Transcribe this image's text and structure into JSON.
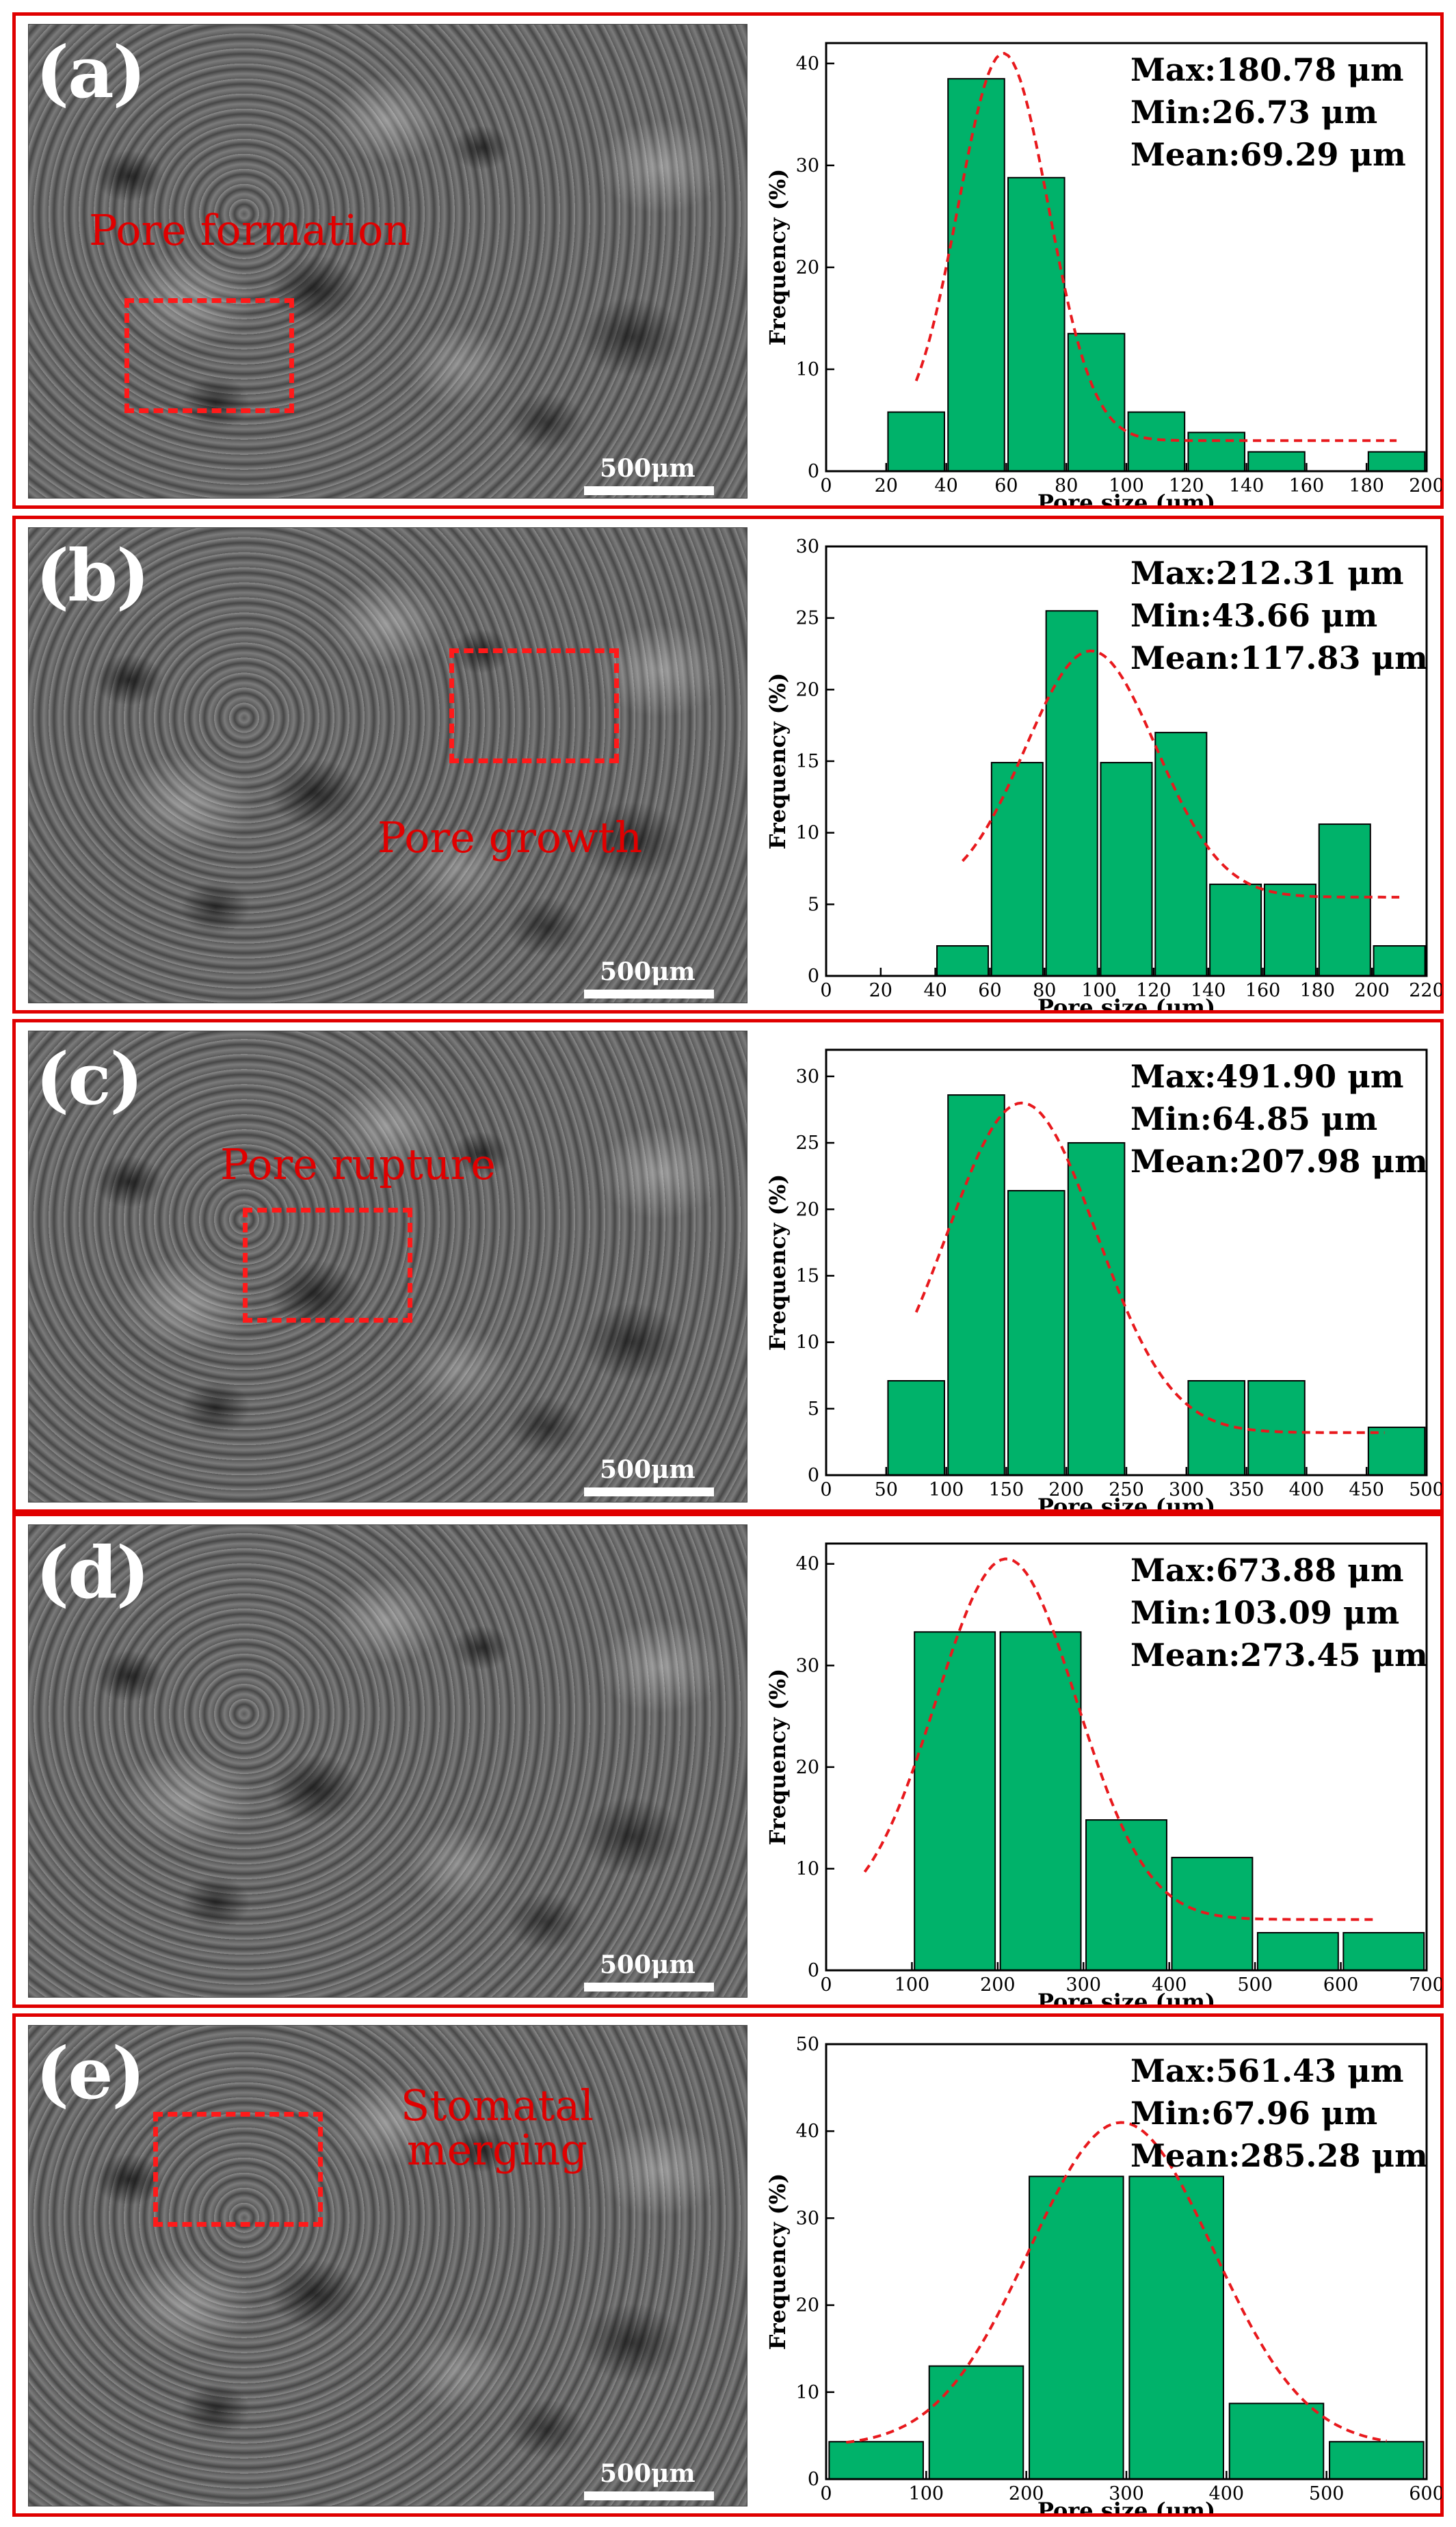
{
  "colors": {
    "frame": "#e00000",
    "bar_fill": "#00b26a",
    "bar_stroke": "#000000",
    "fit_curve": "#e8191d",
    "sem_label": "#e00000"
  },
  "panels": [
    {
      "letter": "(a)",
      "sem_label": "Pore formation",
      "scale_bar": "500μm",
      "stats": [
        "Max:180.78 μm",
        "Min:26.73 μm",
        "Mean:69.29 μm"
      ]
    },
    {
      "letter": "(b)",
      "sem_label": "Pore growth",
      "scale_bar": "500μm",
      "stats": [
        "Max:212.31 μm",
        "Min:43.66 μm",
        "Mean:117.83 μm"
      ]
    },
    {
      "letter": "(c)",
      "sem_label": "Pore rupture",
      "scale_bar": "500μm",
      "stats": [
        "Max:491.90 μm",
        "Min:64.85 μm",
        "Mean:207.98 μm"
      ]
    },
    {
      "letter": "(d)",
      "sem_label": "",
      "scale_bar": "500μm",
      "stats": [
        "Max:673.88 μm",
        "Min:103.09 μm",
        "Mean:273.45 μm"
      ]
    },
    {
      "letter": "(e)",
      "sem_label": "Stomatal merging",
      "scale_bar": "500μm",
      "stats": [
        "Max:561.43 μm",
        "Min:67.96 μm",
        "Mean:285.28 μm"
      ]
    }
  ],
  "chart_data": [
    {
      "type": "bar",
      "xlabel": "Pore size (μm)",
      "ylabel": "Frequency (%)",
      "xlim": [
        0,
        200
      ],
      "ylim": [
        0,
        42
      ],
      "xticks": [
        0,
        20,
        40,
        60,
        80,
        100,
        120,
        140,
        160,
        180,
        200
      ],
      "yticks": [
        0,
        10,
        20,
        30,
        40
      ],
      "bins": [
        [
          20,
          40
        ],
        [
          40,
          60
        ],
        [
          60,
          80
        ],
        [
          80,
          100
        ],
        [
          100,
          120
        ],
        [
          120,
          140
        ],
        [
          140,
          160
        ],
        [
          180,
          200
        ]
      ],
      "values": [
        5.8,
        38.5,
        28.8,
        13.5,
        5.8,
        3.8,
        1.9,
        1.9
      ],
      "fit": {
        "mean": 59,
        "sd": 15,
        "peak": 41,
        "baseline": 3,
        "from": 30,
        "to": 190
      }
    },
    {
      "type": "bar",
      "xlabel": "Pore size (μm)",
      "ylabel": "Frequency (%)",
      "xlim": [
        0,
        220
      ],
      "ylim": [
        0,
        30
      ],
      "xticks": [
        0,
        20,
        40,
        60,
        80,
        100,
        120,
        140,
        160,
        180,
        200,
        220
      ],
      "yticks": [
        0,
        5,
        10,
        15,
        20,
        25,
        30
      ],
      "bins": [
        [
          40,
          60
        ],
        [
          60,
          80
        ],
        [
          80,
          100
        ],
        [
          100,
          120
        ],
        [
          120,
          140
        ],
        [
          140,
          160
        ],
        [
          160,
          180
        ],
        [
          180,
          200
        ],
        [
          200,
          220
        ]
      ],
      "values": [
        2.1,
        14.9,
        25.5,
        14.9,
        17.0,
        6.4,
        6.4,
        10.6,
        2.1
      ],
      "fit": {
        "mean": 97,
        "sd": 24,
        "peak": 22.7,
        "baseline": 5.5,
        "from": 50,
        "to": 210
      }
    },
    {
      "type": "bar",
      "xlabel": "Pore size (μm)",
      "ylabel": "Frequency (%)",
      "xlim": [
        0,
        500
      ],
      "ylim": [
        0,
        32
      ],
      "xticks": [
        0,
        50,
        100,
        150,
        200,
        250,
        300,
        350,
        400,
        450,
        500
      ],
      "yticks": [
        0,
        5,
        10,
        15,
        20,
        25,
        30
      ],
      "bins": [
        [
          50,
          100
        ],
        [
          100,
          150
        ],
        [
          150,
          200
        ],
        [
          200,
          250
        ],
        [
          300,
          350
        ],
        [
          350,
          400
        ],
        [
          450,
          500
        ]
      ],
      "values": [
        7.1,
        28.6,
        21.4,
        25.0,
        7.1,
        7.1,
        3.6
      ],
      "fit": {
        "mean": 163,
        "sd": 62,
        "peak": 28,
        "baseline": 3.2,
        "from": 75,
        "to": 465
      }
    },
    {
      "type": "bar",
      "xlabel": "Pore size (μm)",
      "ylabel": "Frequency (%)",
      "xlim": [
        0,
        700
      ],
      "ylim": [
        0,
        42
      ],
      "xticks": [
        0,
        100,
        200,
        300,
        400,
        500,
        600,
        700
      ],
      "yticks": [
        0,
        10,
        20,
        30,
        40
      ],
      "bins": [
        [
          100,
          200
        ],
        [
          200,
          300
        ],
        [
          300,
          400
        ],
        [
          400,
          500
        ],
        [
          500,
          600
        ],
        [
          600,
          700
        ]
      ],
      "values": [
        33.3,
        33.3,
        14.8,
        11.1,
        3.7,
        3.7
      ],
      "fit": {
        "mean": 210,
        "sd": 82,
        "peak": 40.5,
        "baseline": 5,
        "from": 45,
        "to": 640
      }
    },
    {
      "type": "bar",
      "xlabel": "Pore size (μm)",
      "ylabel": "Frequency (%)",
      "xlim": [
        0,
        600
      ],
      "ylim": [
        0,
        50
      ],
      "xticks": [
        0,
        100,
        200,
        300,
        400,
        500,
        600
      ],
      "yticks": [
        0,
        10,
        20,
        30,
        40,
        50
      ],
      "bins": [
        [
          0,
          100
        ],
        [
          100,
          200
        ],
        [
          200,
          300
        ],
        [
          300,
          400
        ],
        [
          400,
          500
        ],
        [
          500,
          600
        ]
      ],
      "values": [
        4.3,
        13.0,
        34.8,
        34.8,
        8.7,
        4.3
      ],
      "fit": {
        "mean": 295,
        "sd": 92,
        "peak": 41,
        "baseline": 3.8,
        "from": 20,
        "to": 560
      }
    }
  ]
}
